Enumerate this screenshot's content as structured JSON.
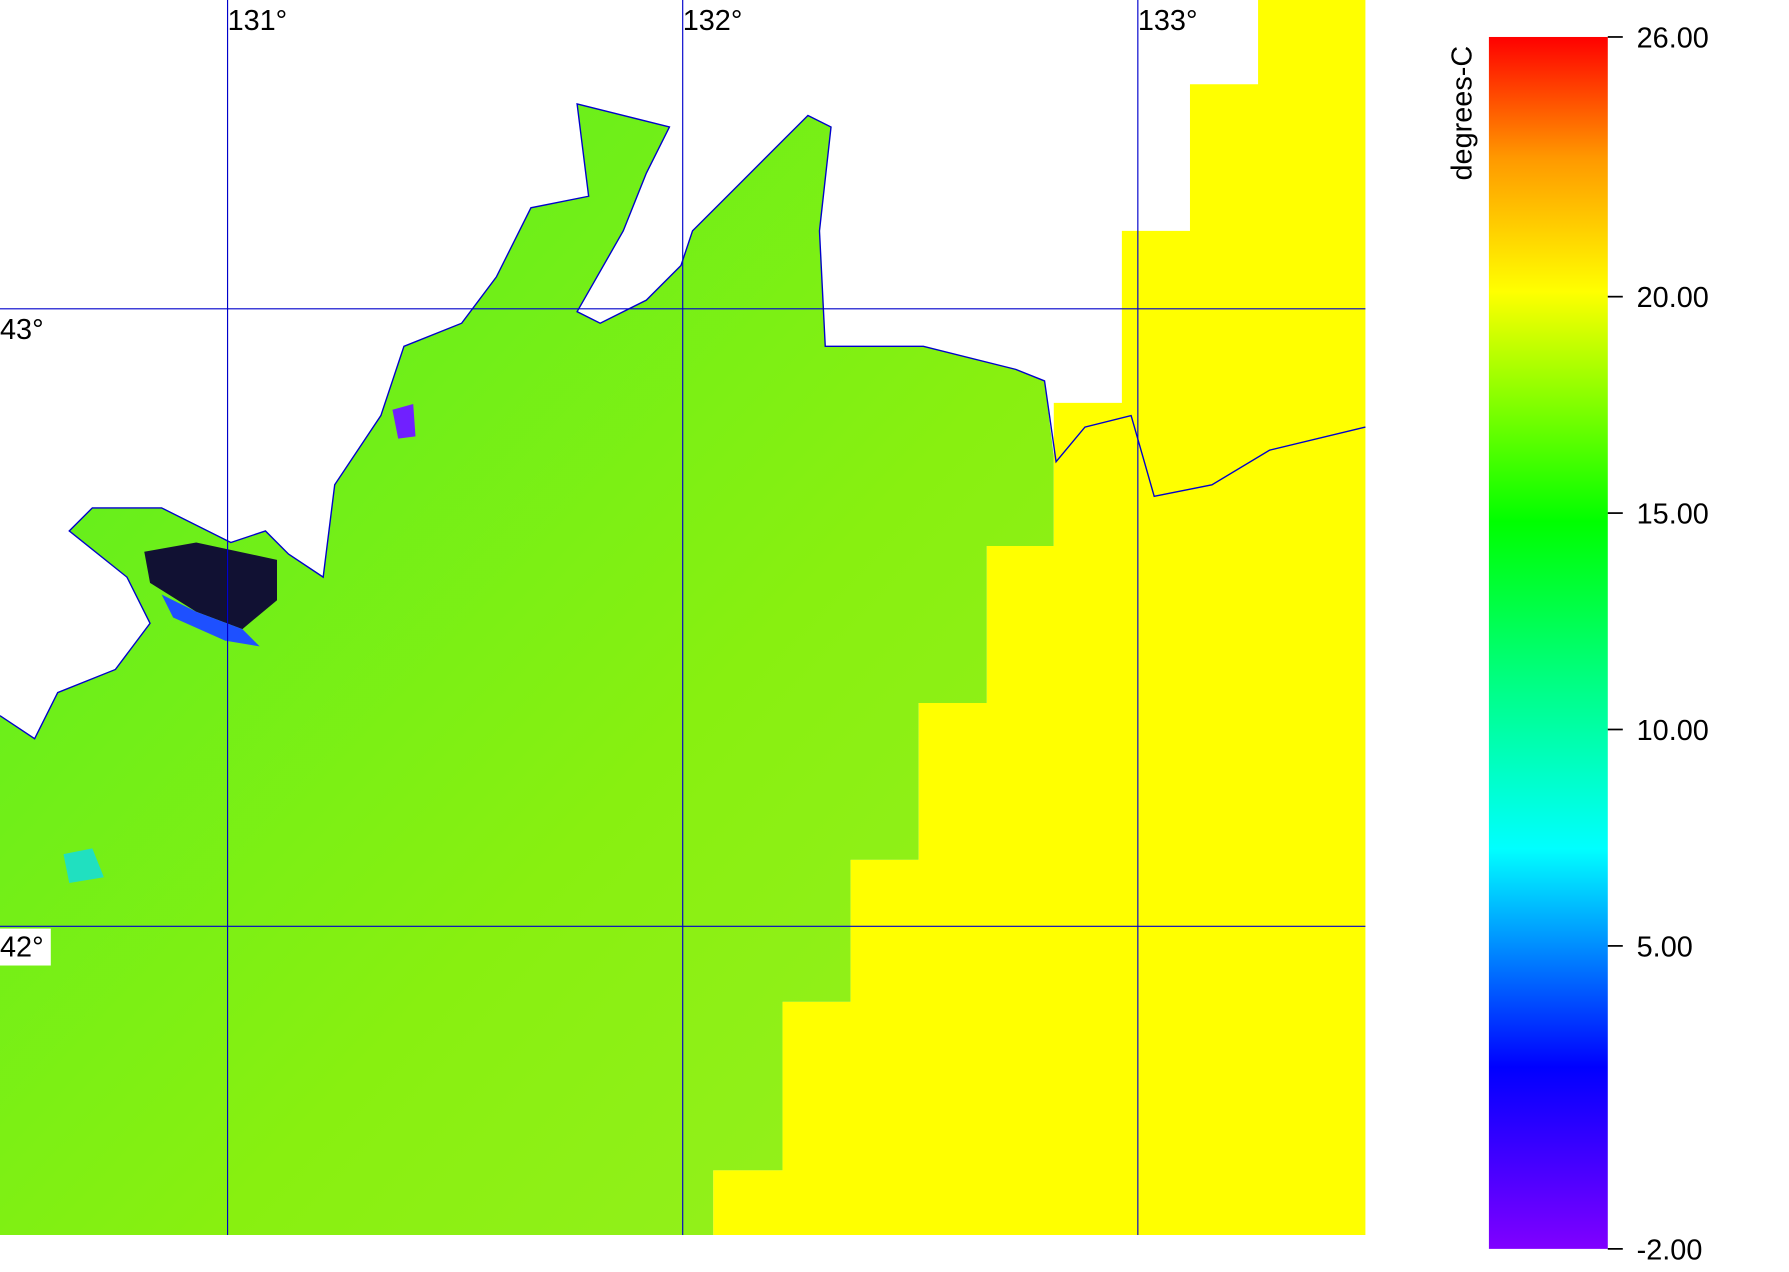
{
  "map": {
    "lon_range": [
      130.5,
      133.5
    ],
    "lat_range": [
      41.5,
      43.5
    ],
    "lon_ticks": [
      {
        "value": 131,
        "label": "131°"
      },
      {
        "value": 132,
        "label": "132°"
      },
      {
        "value": 133,
        "label": "133°"
      }
    ],
    "lat_ticks": [
      {
        "value": 43,
        "label": "43°"
      },
      {
        "value": 42,
        "label": "42°"
      }
    ]
  },
  "colorbar": {
    "title": "degrees-C",
    "range": [
      -2,
      26
    ],
    "ticks": [
      {
        "value": 26,
        "label": "26.00"
      },
      {
        "value": 20,
        "label": "20.00"
      },
      {
        "value": 15,
        "label": "15.00"
      },
      {
        "value": 10,
        "label": "10.00"
      },
      {
        "value": 5,
        "label": "5.00"
      },
      {
        "value": -2,
        "label": "-2.00"
      }
    ]
  }
}
